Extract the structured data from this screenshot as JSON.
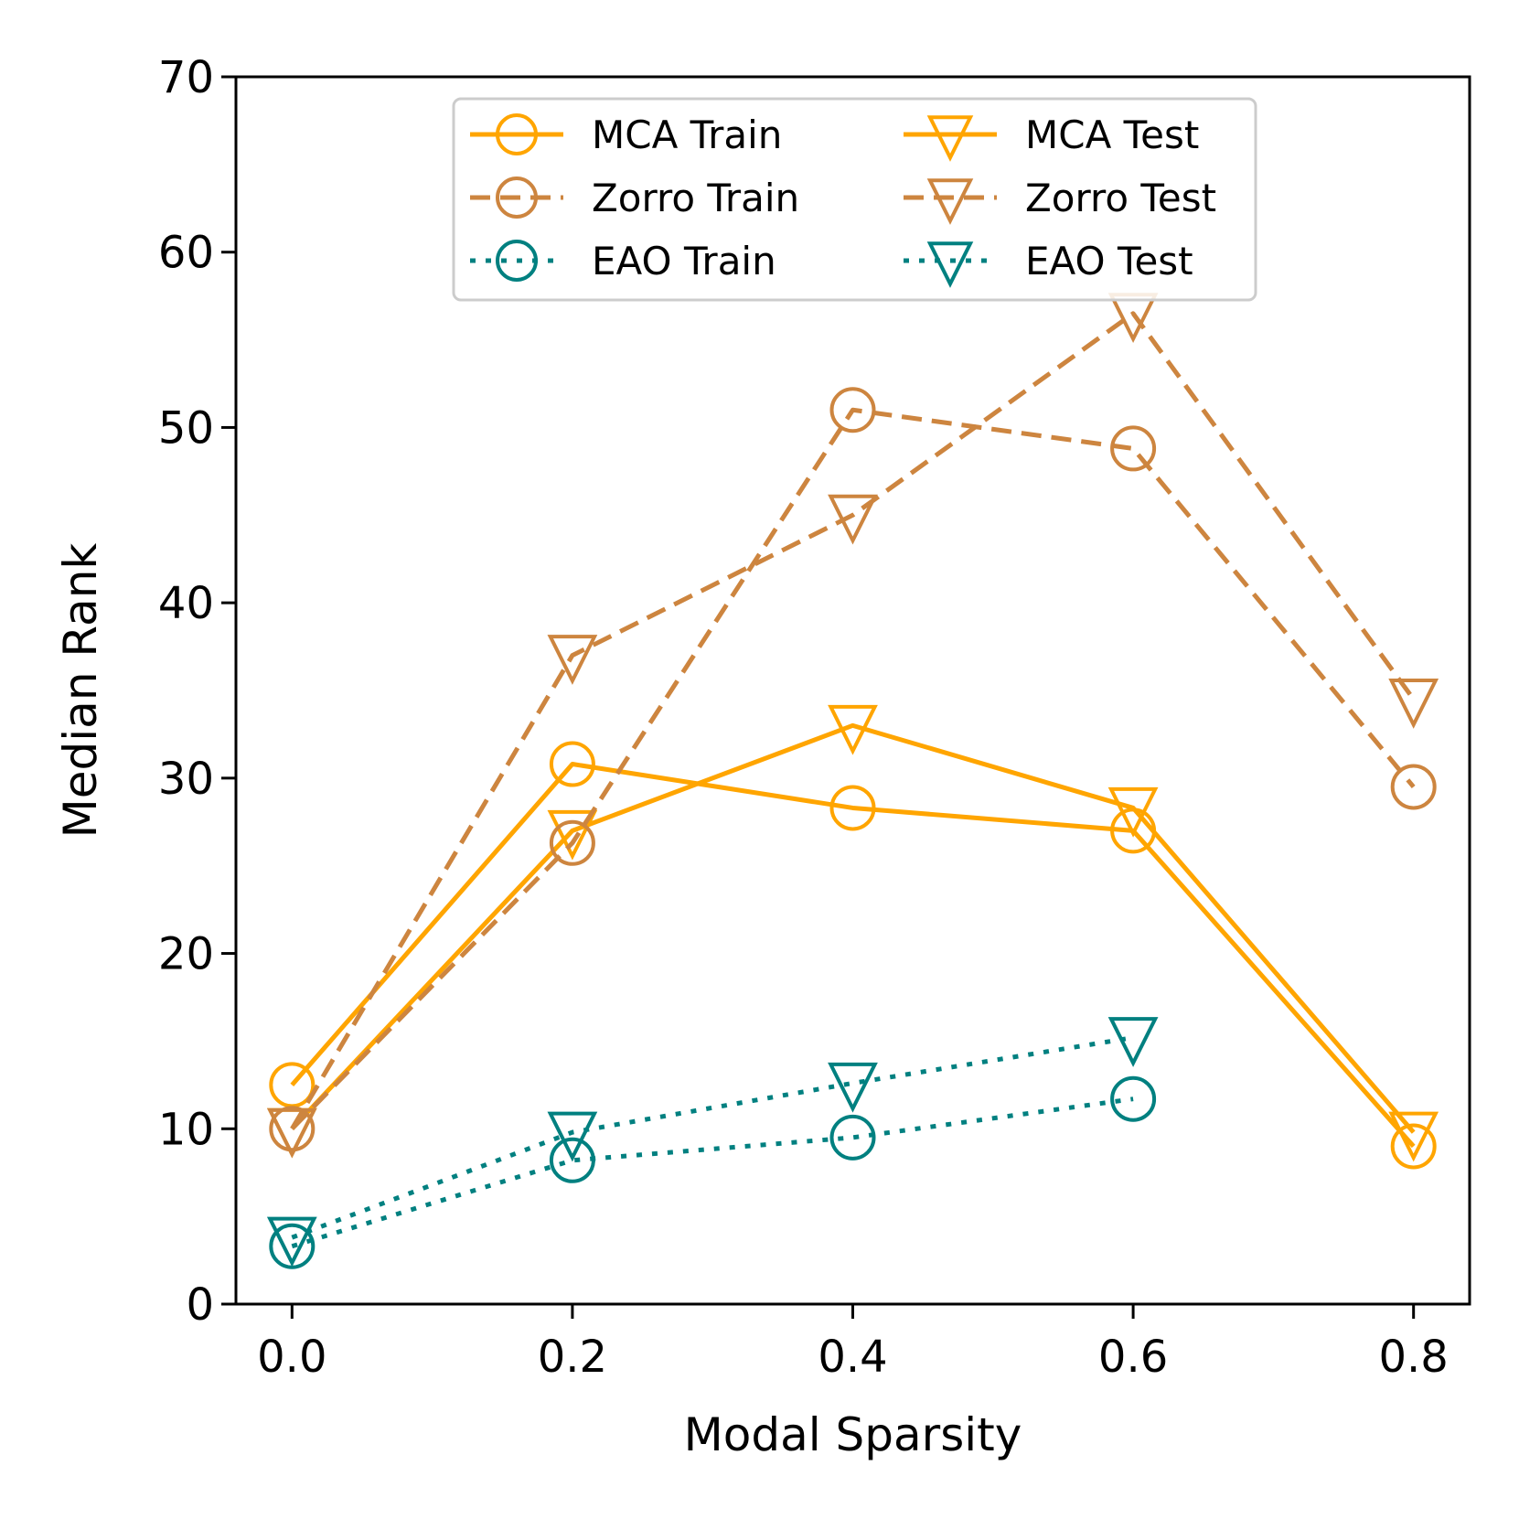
{
  "chart_data": {
    "type": "line",
    "title": "",
    "xlabel": "Modal Sparsity",
    "ylabel": "Median Rank",
    "xlim": [
      -0.04,
      0.84
    ],
    "ylim": [
      0,
      70
    ],
    "x_ticks": [
      "0.0",
      "0.2",
      "0.4",
      "0.6",
      "0.8"
    ],
    "x_tick_values": [
      0.0,
      0.2,
      0.4,
      0.6,
      0.8
    ],
    "y_ticks": [
      "0",
      "10",
      "20",
      "30",
      "40",
      "50",
      "60",
      "70"
    ],
    "y_tick_values": [
      0,
      10,
      20,
      30,
      40,
      50,
      60,
      70
    ],
    "grid": false,
    "legend_position": "top-center",
    "series": [
      {
        "name": "MCA Train",
        "color": "#FFA500",
        "linestyle": "solid",
        "marker": "circle",
        "x": [
          0.0,
          0.2,
          0.4,
          0.6,
          0.8
        ],
        "values": [
          12.5,
          30.8,
          28.3,
          27.0,
          9.0
        ]
      },
      {
        "name": "MCA Test",
        "color": "#FFA500",
        "linestyle": "solid",
        "marker": "triangle-down",
        "x": [
          0.0,
          0.2,
          0.4,
          0.6,
          0.8
        ],
        "values": [
          10.0,
          27.0,
          33.0,
          28.3,
          9.8
        ]
      },
      {
        "name": "Zorro Train",
        "color": "#CD853F",
        "linestyle": "dashed",
        "marker": "circle",
        "x": [
          0.0,
          0.2,
          0.4,
          0.6,
          0.8
        ],
        "values": [
          10.0,
          26.3,
          51.0,
          48.8,
          29.5
        ]
      },
      {
        "name": "Zorro Test",
        "color": "#CD853F",
        "linestyle": "dashed",
        "marker": "triangle-down",
        "x": [
          0.0,
          0.2,
          0.4,
          0.6,
          0.8
        ],
        "values": [
          10.0,
          37.0,
          45.0,
          56.5,
          34.5
        ]
      },
      {
        "name": "EAO Train",
        "color": "#008080",
        "linestyle": "dotted",
        "marker": "circle",
        "x": [
          0.0,
          0.2,
          0.4,
          0.6
        ],
        "values": [
          3.3,
          8.2,
          9.5,
          11.7
        ]
      },
      {
        "name": "EAO Test",
        "color": "#008080",
        "linestyle": "dotted",
        "marker": "triangle-down",
        "x": [
          0.0,
          0.2,
          0.4,
          0.6
        ],
        "values": [
          3.8,
          9.8,
          12.6,
          15.2
        ]
      }
    ],
    "legend_order": [
      "MCA Train",
      "MCA Test",
      "Zorro Train",
      "Zorro Test",
      "EAO Train",
      "EAO Test"
    ]
  }
}
